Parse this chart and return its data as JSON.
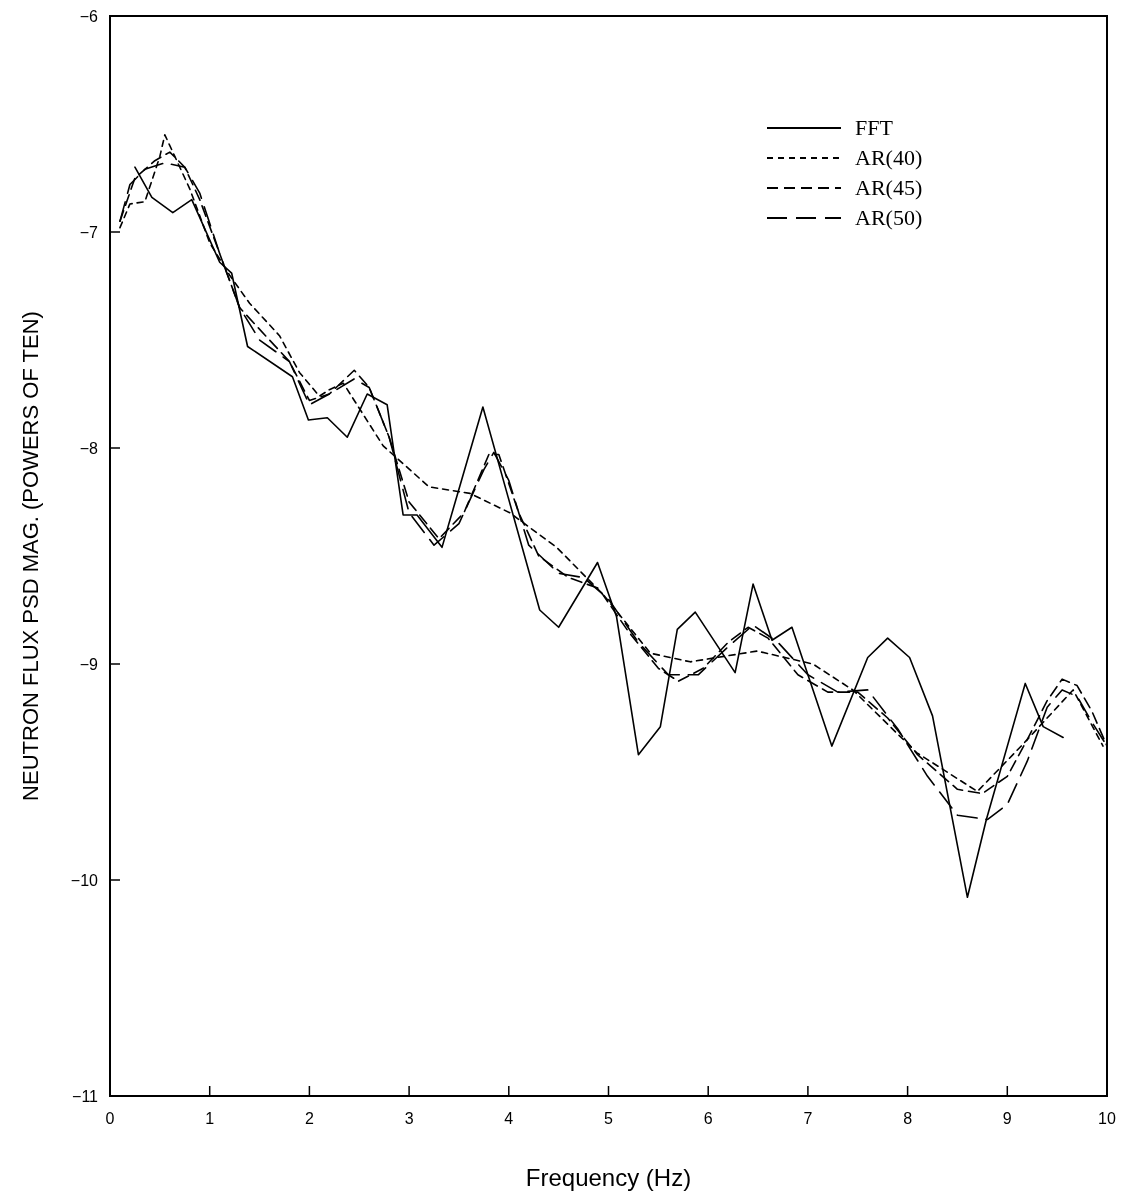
{
  "chart_data": {
    "type": "line",
    "xlabel": "Frequency (Hz)",
    "ylabel": "NEUTRON FLUX PSD MAG. (POWERS OF TEN)",
    "xlim": [
      0,
      10
    ],
    "ylim": [
      -11,
      -6
    ],
    "xticks": [
      0,
      1,
      2,
      3,
      4,
      5,
      6,
      7,
      8,
      9,
      10
    ],
    "yticks": [
      -11,
      -10,
      -9,
      -8,
      -7,
      -6
    ],
    "grid": false,
    "legend": "top right",
    "marker": "none",
    "series": [
      {
        "name": "FFT",
        "color": "#000000",
        "line_style": "solid",
        "x": [
          0.25,
          0.42,
          0.63,
          0.82,
          1.1,
          1.22,
          1.38,
          1.83,
          1.99,
          2.18,
          2.38,
          2.58,
          2.78,
          2.94,
          3.08,
          3.33,
          3.74,
          4.31,
          4.5,
          4.89,
          5.08,
          5.3,
          5.52,
          5.69,
          5.87,
          6.27,
          6.45,
          6.64,
          6.84,
          7.24,
          7.6,
          7.8,
          8.02,
          8.25,
          8.6,
          8.79,
          9.18,
          9.36,
          9.56
        ],
        "values": [
          -6.7,
          -6.84,
          -6.91,
          -6.85,
          -7.14,
          -7.19,
          -7.53,
          -7.67,
          -7.87,
          -7.86,
          -7.95,
          -7.75,
          -7.8,
          -8.31,
          -8.31,
          -8.46,
          -7.81,
          -8.75,
          -8.83,
          -8.53,
          -8.78,
          -9.42,
          -9.29,
          -8.84,
          -8.76,
          -9.04,
          -8.63,
          -8.89,
          -8.83,
          -9.38,
          -8.97,
          -8.88,
          -8.97,
          -9.24,
          -10.08,
          -9.72,
          -9.09,
          -9.29,
          -9.34
        ]
      },
      {
        "name": "AR(40)",
        "color": "#000000",
        "line_style": "dotted",
        "x": [
          0.1,
          0.2,
          0.35,
          0.5,
          0.55,
          0.65,
          0.8,
          1.0,
          1.2,
          1.4,
          1.7,
          1.9,
          2.1,
          2.2,
          2.34,
          2.74,
          3.2,
          3.61,
          4.01,
          4.48,
          4.95,
          5.42,
          5.82,
          6.49,
          7.05,
          7.45,
          8.09,
          8.7,
          9.16,
          9.66,
          9.96
        ],
        "values": [
          -6.98,
          -6.87,
          -6.86,
          -6.65,
          -6.55,
          -6.65,
          -6.8,
          -7.05,
          -7.2,
          -7.33,
          -7.48,
          -7.65,
          -7.76,
          -7.73,
          -7.7,
          -7.99,
          -8.18,
          -8.21,
          -8.3,
          -8.46,
          -8.68,
          -8.95,
          -8.99,
          -8.94,
          -9.0,
          -9.12,
          -9.41,
          -9.59,
          -9.37,
          -9.12,
          -9.38
        ]
      },
      {
        "name": "AR(45)",
        "color": "#000000",
        "line_style": "dashed",
        "x": [
          0.1,
          0.25,
          0.45,
          0.6,
          0.75,
          0.9,
          1.1,
          1.3,
          1.6,
          1.8,
          2.0,
          2.2,
          2.45,
          2.6,
          2.8,
          3.0,
          3.3,
          3.55,
          3.8,
          3.9,
          4.1,
          4.3,
          4.6,
          4.9,
          5.2,
          5.5,
          5.7,
          5.95,
          6.2,
          6.4,
          6.6,
          6.9,
          7.2,
          7.5,
          7.8,
          8.1,
          8.5,
          8.75,
          9.0,
          9.2,
          9.4,
          9.55,
          9.7,
          9.85,
          10.0
        ],
        "values": [
          -6.95,
          -6.75,
          -6.67,
          -6.63,
          -6.7,
          -6.85,
          -7.1,
          -7.35,
          -7.5,
          -7.6,
          -7.78,
          -7.75,
          -7.64,
          -7.72,
          -7.95,
          -8.25,
          -8.42,
          -8.3,
          -8.03,
          -8.03,
          -8.3,
          -8.5,
          -8.6,
          -8.65,
          -8.85,
          -9.02,
          -9.08,
          -9.02,
          -8.9,
          -8.83,
          -8.88,
          -9.05,
          -9.13,
          -9.13,
          -9.25,
          -9.42,
          -9.58,
          -9.6,
          -9.52,
          -9.35,
          -9.17,
          -9.07,
          -9.1,
          -9.22,
          -9.38
        ]
      },
      {
        "name": "AR(50)",
        "color": "#000000",
        "line_style": "dashed",
        "x": [
          0.1,
          0.2,
          0.35,
          0.55,
          0.75,
          0.9,
          1.1,
          1.3,
          1.5,
          1.8,
          2.0,
          2.2,
          2.45,
          2.6,
          2.8,
          3.0,
          3.25,
          3.5,
          3.75,
          3.85,
          4.0,
          4.2,
          4.5,
          4.75,
          5.0,
          5.3,
          5.6,
          5.9,
          6.2,
          6.45,
          6.7,
          7.0,
          7.3,
          7.6,
          7.9,
          8.2,
          8.5,
          8.8,
          9.0,
          9.2,
          9.4,
          9.55,
          9.7,
          9.85,
          10.0
        ],
        "values": [
          -6.95,
          -6.78,
          -6.71,
          -6.68,
          -6.7,
          -6.82,
          -7.1,
          -7.35,
          -7.5,
          -7.6,
          -7.8,
          -7.75,
          -7.68,
          -7.72,
          -7.95,
          -8.3,
          -8.45,
          -8.35,
          -8.1,
          -8.02,
          -8.15,
          -8.45,
          -8.58,
          -8.6,
          -8.7,
          -8.9,
          -9.05,
          -9.05,
          -8.92,
          -8.82,
          -8.9,
          -9.05,
          -9.13,
          -9.12,
          -9.3,
          -9.52,
          -9.7,
          -9.72,
          -9.65,
          -9.45,
          -9.2,
          -9.12,
          -9.15,
          -9.27,
          -9.38
        ]
      }
    ]
  }
}
